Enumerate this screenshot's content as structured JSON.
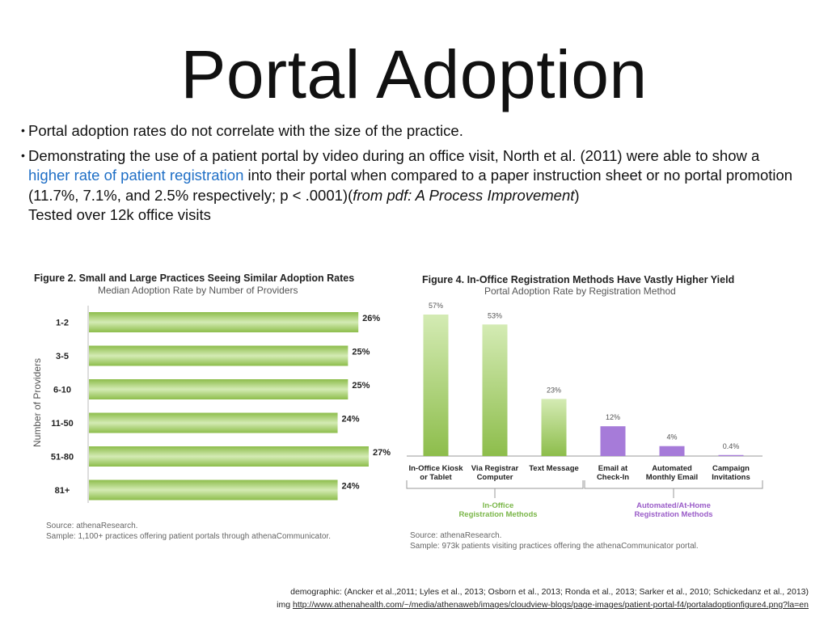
{
  "slide": {
    "title": "Portal Adoption",
    "bullets": [
      "Portal adoption rates do not correlate with the size of the practice.",
      {
        "pre": "Demonstrating the use of a patient portal by video during an office visit, North et al. (2011) were able to show a ",
        "highlight": "higher rate of patient registration",
        "mid": " into their portal when compared to a paper instruction sheet or no portal promotion (11.7%, 7.1%, and 2.5% respectively; p < .0001)(",
        "italic": "from pdf: A Process Improvement",
        "post": ")",
        "line2": "Tested over 12k office visits"
      }
    ],
    "footer_line1": "demographic: (Ancker et al.,2011; Lyles et al., 2013; Osborn et al., 2013; Ronda et al., 2013; Sarker et al., 2010; Schickedanz et al., 2013)",
    "footer_prefix": "img",
    "footer_link": "http://www.athenahealth.com/~/media/athenaweb/images/cloudview-blogs/page-images/patient-portal-f4/portaladoptionfigure4.png?la=en"
  },
  "chart_data": [
    {
      "type": "bar",
      "orientation": "horizontal",
      "title": "Figure 2. Small and Large Practices Seeing Similar Adoption Rates",
      "subtitle": "Median Adoption Rate by Number of Providers",
      "ylabel": "Number of Providers",
      "categories": [
        "1-2",
        "3-5",
        "6-10",
        "11-50",
        "51-80",
        "81+"
      ],
      "values": [
        26,
        25,
        25,
        24,
        27,
        24
      ],
      "value_labels": [
        "26%",
        "25%",
        "25%",
        "24%",
        "27%",
        "24%"
      ],
      "xlim": [
        0,
        27
      ],
      "colors": {
        "bar_light": "#d4ebb4",
        "bar_dark": "#8dbd4b"
      },
      "source": "Source: athenaResearch.",
      "sample": "Sample: 1,100+ practices offering patient portals through athenaCommunicator."
    },
    {
      "type": "bar",
      "orientation": "vertical",
      "title": "Figure 4. In-Office Registration Methods Have Vastly Higher Yield",
      "subtitle": "Portal Adoption Rate by Registration Method",
      "categories": [
        [
          "In-Office Kiosk",
          "or Tablet"
        ],
        [
          "Via Registrar",
          "Computer"
        ],
        [
          "Text Message"
        ],
        [
          "Email at",
          "Check-In"
        ],
        [
          "Automated",
          "Monthly Email"
        ],
        [
          "Campaign",
          "Invitations"
        ]
      ],
      "values": [
        57,
        53,
        23,
        12,
        4,
        0.4
      ],
      "value_labels": [
        "57%",
        "53%",
        "23%",
        "12%",
        "4%",
        "0.4%"
      ],
      "groups": [
        {
          "name_lines": [
            "In-Office",
            "Registration Methods"
          ],
          "color": "#7ab648"
        },
        {
          "name_lines": [
            "Automated/At-Home",
            "Registration Methods"
          ],
          "color": "#9a5cc8"
        }
      ],
      "bar_group": [
        0,
        0,
        0,
        1,
        1,
        1
      ],
      "ylim": [
        0,
        57
      ],
      "colors": {
        "green_light": "#d4ebb4",
        "green_dark": "#8dbd4b",
        "purple": "#a67bd9"
      },
      "source": "Source: athenaResearch.",
      "sample": "Sample: 973k patients visiting practices offering the athenaCommunicator portal."
    }
  ]
}
